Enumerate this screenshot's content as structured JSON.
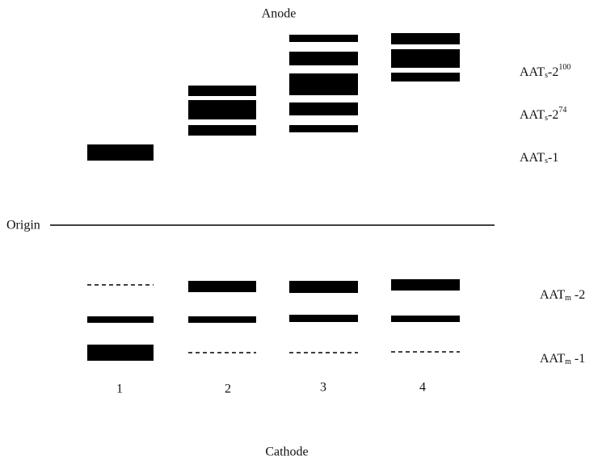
{
  "poles": {
    "anode": "Anode",
    "cathode": "Cathode"
  },
  "origin": "Origin",
  "lanes": [
    "1",
    "2",
    "3",
    "4"
  ],
  "band_labels": [
    {
      "base": "AAT",
      "sub": "s",
      "mid": "-2",
      "sup": "100"
    },
    {
      "base": "AAT",
      "sub": "s",
      "mid": "-2",
      "sup": "74"
    },
    {
      "base": "AAT",
      "sub": "s",
      "mid": "-1"
    },
    {
      "base": "AAT",
      "sub": "m",
      "mid": " -2"
    },
    {
      "base": "AAT",
      "sub": "m",
      "mid": " -1"
    }
  ]
}
